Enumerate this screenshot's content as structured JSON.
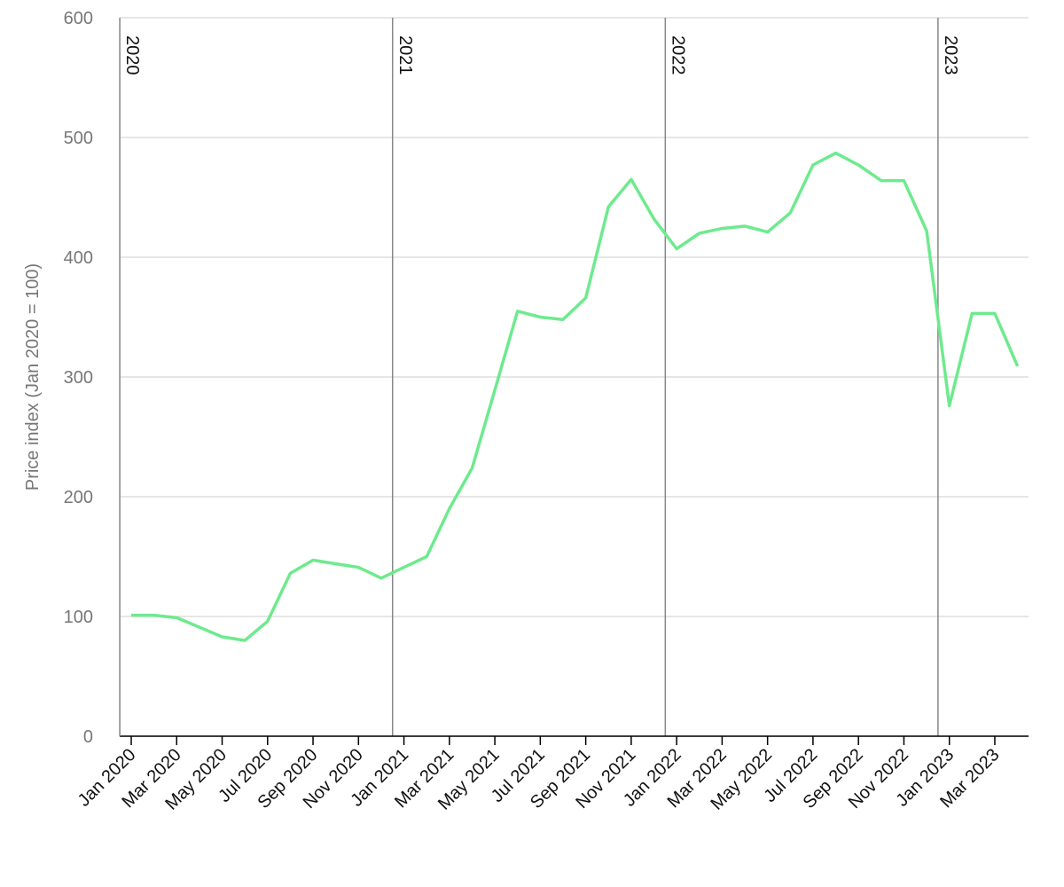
{
  "chart_data": {
    "type": "line",
    "y_label": "Price index (Jan 2020 = 100)",
    "categories": [
      "Jan 2020",
      null,
      "Mar 2020",
      null,
      "May 2020",
      null,
      "Jul 2020",
      null,
      "Sep 2020",
      null,
      "Nov 2020",
      null,
      "Jan 2021",
      null,
      "Mar 2021",
      null,
      "May 2021",
      null,
      "Jul 2021",
      null,
      "Sep 2021",
      null,
      "Nov 2021",
      null,
      "Jan 2022",
      null,
      "Mar 2022",
      null,
      "May 2022",
      null,
      "Jul 2022",
      null,
      "Sep 2022",
      null,
      "Nov 2022",
      null,
      "Jan 2023",
      null,
      "Mar 2023",
      null
    ],
    "series": [
      {
        "color": "#6eea8e",
        "values": [
          101,
          101,
          99,
          91,
          83,
          80,
          96,
          136,
          147,
          144,
          141,
          132,
          141,
          150,
          190,
          224,
          289,
          355,
          350,
          348,
          366,
          442,
          465,
          432,
          407,
          420,
          424,
          426,
          421,
          437,
          477,
          487,
          477,
          464,
          464,
          422,
          276,
          353,
          353,
          309
        ]
      }
    ],
    "annotations": [
      "2020",
      "2021",
      "2022",
      "2023"
    ],
    "ylim": [
      0,
      600
    ],
    "yticks": [
      0,
      100,
      200,
      300,
      400,
      500,
      600
    ],
    "grid": true
  }
}
